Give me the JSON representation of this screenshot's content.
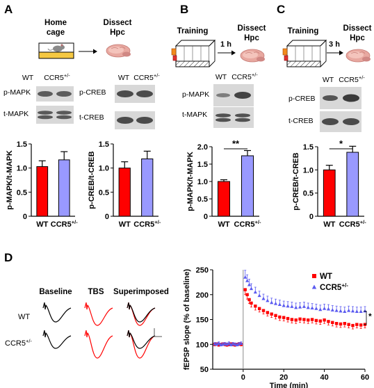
{
  "panels": {
    "A": {
      "letter": "A",
      "cage_label": [
        "Home",
        "cage"
      ],
      "dissect_label": [
        "Dissect",
        "Hpc"
      ],
      "blot1": {
        "header_left": "WT",
        "header_right": "CCR5",
        "header_sup": "+/-",
        "rows": [
          "p-MAPK",
          "t-MAPK"
        ]
      },
      "blot2": {
        "header_left": "WT",
        "header_right": "CCR5",
        "header_sup": "+/-",
        "rows": [
          "p-CREB",
          "t-CREB"
        ]
      }
    },
    "B": {
      "letter": "B",
      "training_label": "Training",
      "delay_label": "1 h",
      "dissect_label": [
        "Dissect",
        "Hpc"
      ],
      "blot": {
        "header_left": "WT",
        "header_right": "CCR5",
        "header_sup": "+/-",
        "rows": [
          "p-MAPK",
          "t-MAPK"
        ]
      },
      "significance": "**"
    },
    "C": {
      "letter": "C",
      "training_label": "Training",
      "delay_label": "3 h",
      "dissect_label": [
        "Dissect",
        "Hpc"
      ],
      "blot": {
        "header_left": "WT",
        "header_right": "CCR5",
        "header_sup": "+/-",
        "rows": [
          "p-CREB",
          "t-CREB"
        ]
      },
      "significance": "*"
    },
    "D": {
      "letter": "D",
      "trace_headers": [
        "Baseline",
        "TBS",
        "Superimposed"
      ],
      "row_labels": [
        {
          "text": "WT",
          "sup": ""
        },
        {
          "text": "CCR5",
          "sup": "+/-"
        }
      ]
    }
  },
  "colors": {
    "wt": "#ff0000",
    "ccr5_bar": "#9999ff",
    "ccr5_line": "#5b5bf0",
    "black": "#000000"
  },
  "chart_data": [
    {
      "type": "bar",
      "panel": "A",
      "categories": [
        "WT",
        "CCR5+/-"
      ],
      "cat_main": [
        "WT",
        "CCR5"
      ],
      "cat_sup": [
        "",
        "+/-"
      ],
      "values": [
        1.03,
        1.17
      ],
      "errors": [
        0.12,
        0.17
      ],
      "ylabel": "p-MAPK/t-MAPK",
      "ylim": [
        0,
        1.5
      ],
      "yticks": [
        0,
        0.5,
        1.0,
        1.5
      ],
      "ytick_labels": [
        "0",
        "0.5",
        "1.0",
        "1.5"
      ]
    },
    {
      "type": "bar",
      "panel": "A",
      "categories": [
        "WT",
        "CCR5+/-"
      ],
      "cat_main": [
        "WT",
        "CCR5"
      ],
      "cat_sup": [
        "",
        "+/-"
      ],
      "values": [
        1.0,
        1.19
      ],
      "errors": [
        0.13,
        0.16
      ],
      "ylabel": "p-CREB/t-CREB",
      "ylim": [
        0,
        1.5
      ],
      "yticks": [
        0,
        0.5,
        1.0,
        1.5
      ],
      "ytick_labels": [
        "0",
        "0.5",
        "1.0",
        "1.5"
      ]
    },
    {
      "type": "bar",
      "panel": "B",
      "categories": [
        "WT",
        "CCR5+/-"
      ],
      "cat_main": [
        "WT",
        "CCR5"
      ],
      "cat_sup": [
        "",
        "+/-"
      ],
      "values": [
        1.0,
        1.74
      ],
      "errors": [
        0.05,
        0.15
      ],
      "ylabel": "p-MAPK/t-MAPK",
      "ylim": [
        0,
        2.0
      ],
      "yticks": [
        0,
        0.5,
        1.0,
        1.5,
        2.0
      ],
      "ytick_labels": [
        "0",
        "0.5",
        "1.0",
        "1.5",
        "2.0"
      ]
    },
    {
      "type": "bar",
      "panel": "C",
      "categories": [
        "WT",
        "CCR5+/-"
      ],
      "cat_main": [
        "WT",
        "CCR5"
      ],
      "cat_sup": [
        "",
        "+/-"
      ],
      "values": [
        1.0,
        1.38
      ],
      "errors": [
        0.1,
        0.13
      ],
      "ylabel": "p-CREB/t-CREB",
      "ylim": [
        0,
        1.5
      ],
      "yticks": [
        0,
        0.5,
        1.0,
        1.5
      ],
      "ytick_labels": [
        "0",
        "0.5",
        "1.0",
        "1.5"
      ]
    },
    {
      "type": "scatter",
      "panel": "D",
      "xlabel": "Time (min)",
      "ylabel": "fEPSP slope (% of baseline)",
      "xlim": [
        -15,
        60
      ],
      "ylim": [
        50,
        250
      ],
      "xticks": [
        0,
        20,
        40,
        60
      ],
      "yticks": [
        50,
        100,
        150,
        200,
        250
      ],
      "tbs_time": 0,
      "significance": "*",
      "series": [
        {
          "name": "WT",
          "sup": "",
          "x": [
            -14,
            -13,
            -12,
            -11,
            -10,
            -9,
            -8,
            -7,
            -6,
            -5,
            -4,
            -3,
            -2,
            -1,
            1,
            2,
            3,
            4,
            6,
            8,
            10,
            12,
            14,
            16,
            18,
            20,
            22,
            24,
            26,
            28,
            30,
            32,
            34,
            36,
            38,
            40,
            42,
            44,
            46,
            48,
            50,
            52,
            54,
            56,
            58,
            60
          ],
          "y": [
            100,
            101,
            99,
            100,
            101,
            100,
            99,
            100,
            101,
            100,
            99,
            100,
            101,
            100,
            210,
            200,
            190,
            183,
            177,
            172,
            168,
            164,
            161,
            158,
            155,
            154,
            152,
            150,
            149,
            151,
            150,
            149,
            150,
            148,
            147,
            149,
            146,
            144,
            142,
            141,
            142,
            140,
            138,
            140,
            139,
            140
          ],
          "err": [
            3,
            3,
            3,
            3,
            3,
            3,
            3,
            3,
            3,
            3,
            3,
            3,
            3,
            3,
            10,
            9,
            8,
            8,
            8,
            7,
            7,
            7,
            7,
            7,
            7,
            7,
            7,
            7,
            7,
            7,
            7,
            7,
            7,
            7,
            7,
            7,
            7,
            7,
            7,
            7,
            7,
            7,
            7,
            7,
            7,
            7
          ]
        },
        {
          "name": "CCR5",
          "sup": "+/-",
          "x": [
            -14,
            -13,
            -12,
            -11,
            -10,
            -9,
            -8,
            -7,
            -6,
            -5,
            -4,
            -3,
            -2,
            -1,
            1,
            2,
            3,
            4,
            6,
            8,
            10,
            12,
            14,
            16,
            18,
            20,
            22,
            24,
            26,
            28,
            30,
            32,
            34,
            36,
            38,
            40,
            42,
            44,
            46,
            48,
            50,
            52,
            54,
            56,
            58,
            60
          ],
          "y": [
            101,
            100,
            102,
            99,
            100,
            101,
            100,
            102,
            99,
            101,
            100,
            99,
            101,
            102,
            235,
            228,
            220,
            212,
            205,
            198,
            192,
            188,
            184,
            182,
            180,
            178,
            177,
            176,
            174,
            175,
            176,
            174,
            173,
            172,
            170,
            172,
            171,
            169,
            168,
            167,
            166,
            168,
            167,
            166,
            166,
            167
          ],
          "err": [
            3,
            3,
            3,
            3,
            3,
            3,
            3,
            3,
            3,
            3,
            3,
            3,
            3,
            3,
            14,
            12,
            11,
            10,
            10,
            9,
            9,
            9,
            9,
            9,
            9,
            9,
            9,
            9,
            9,
            9,
            9,
            9,
            9,
            9,
            9,
            9,
            9,
            9,
            9,
            9,
            9,
            9,
            9,
            9,
            9,
            9
          ]
        }
      ]
    }
  ]
}
